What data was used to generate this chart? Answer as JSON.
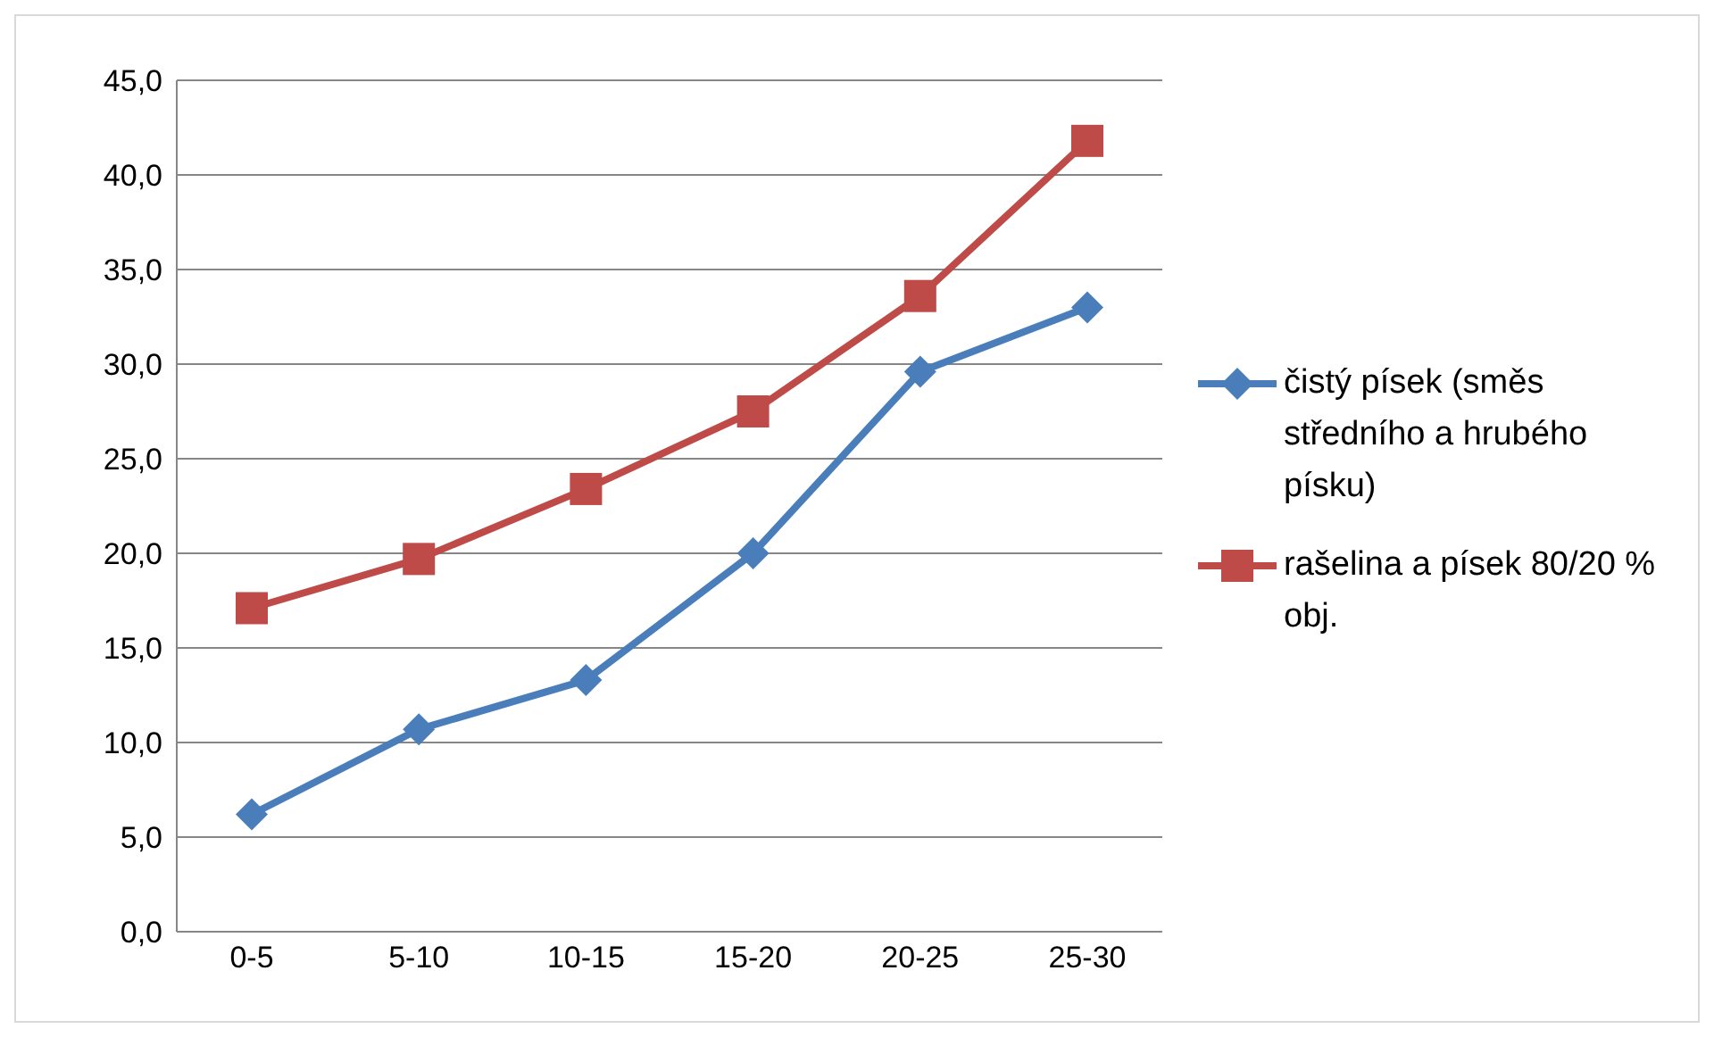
{
  "chart_data": {
    "type": "line",
    "categories": [
      "0-5",
      "5-10",
      "10-15",
      "15-20",
      "20-25",
      "25-30"
    ],
    "series": [
      {
        "name": "čistý písek (směs středního a hrubého písku)",
        "color": "#4a7ebb",
        "marker": "diamond",
        "values": [
          6.2,
          10.7,
          13.3,
          20.0,
          29.6,
          33.0
        ]
      },
      {
        "name": "rašelina a písek 80/20 % obj.",
        "color": "#be4b48",
        "marker": "square",
        "values": [
          17.1,
          19.7,
          23.4,
          27.5,
          33.6,
          41.8
        ]
      }
    ],
    "ylim": [
      0,
      45
    ],
    "yticks": [
      {
        "value": 0,
        "label": "0,0"
      },
      {
        "value": 5,
        "label": "5,0"
      },
      {
        "value": 10,
        "label": "10,0"
      },
      {
        "value": 15,
        "label": "15,0"
      },
      {
        "value": 20,
        "label": "20,0"
      },
      {
        "value": 25,
        "label": "25,0"
      },
      {
        "value": 30,
        "label": "30,0"
      },
      {
        "value": 35,
        "label": "35,0"
      },
      {
        "value": 40,
        "label": "40,0"
      },
      {
        "value": 45,
        "label": "45,0"
      }
    ],
    "grid": "y",
    "legend": "right",
    "line_style": "solid"
  }
}
